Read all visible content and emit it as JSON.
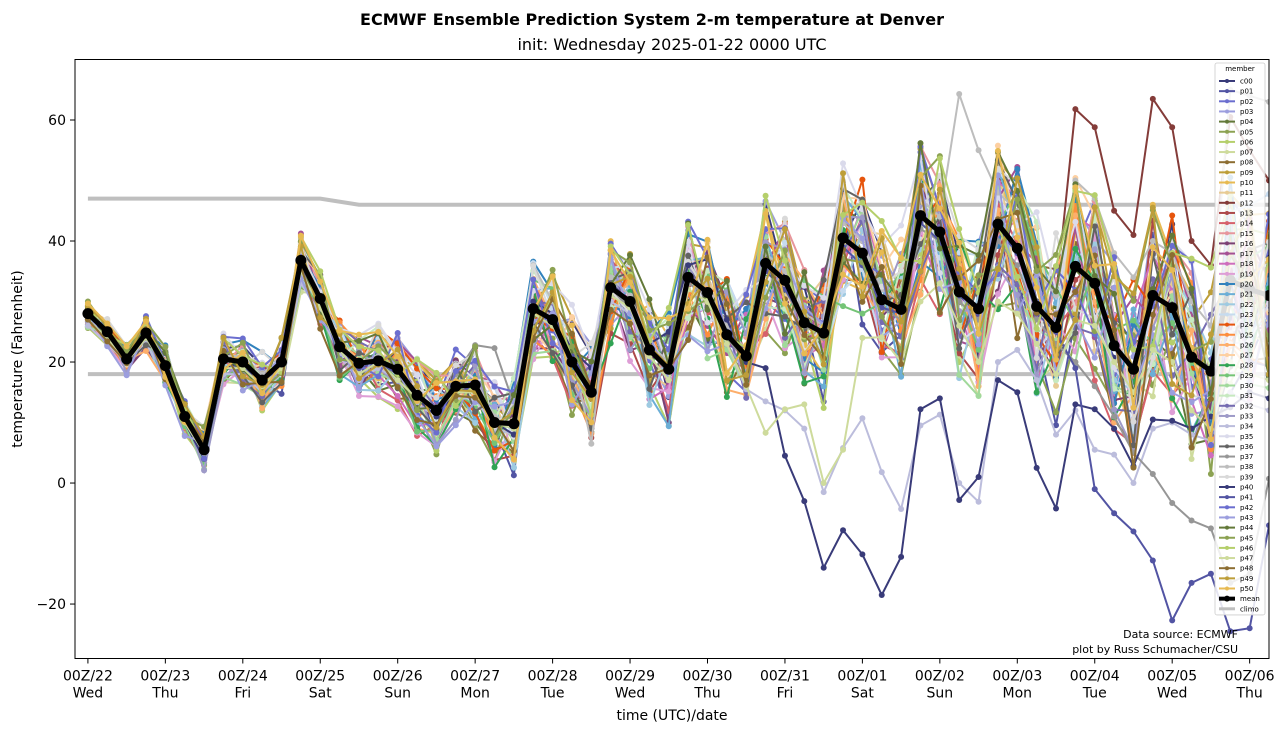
{
  "chart_data": {
    "type": "line",
    "title": "ECMWF Ensemble Prediction System 2-m temperature at Denver",
    "subtitle": "init: Wednesday 2025-01-22 0000 UTC",
    "xlabel": "time (UTC)/date",
    "ylabel": "temperature (Fahrenheit)",
    "ylim": [
      -29,
      70
    ],
    "yticks": [
      -20,
      0,
      20,
      40,
      60
    ],
    "ytick_labels": [
      "−20",
      "0",
      "20",
      "40",
      "60"
    ],
    "x_hours_range": [
      -4,
      366
    ],
    "x_step_hours": 6,
    "xticks_hours": [
      0,
      24,
      48,
      72,
      96,
      120,
      144,
      168,
      192,
      216,
      240,
      264,
      288,
      312,
      336,
      360
    ],
    "xtick_labels": [
      [
        "00Z/22",
        "Wed"
      ],
      [
        "00Z/23",
        "Thu"
      ],
      [
        "00Z/24",
        "Fri"
      ],
      [
        "00Z/25",
        "Sat"
      ],
      [
        "00Z/26",
        "Sun"
      ],
      [
        "00Z/27",
        "Mon"
      ],
      [
        "00Z/28",
        "Tue"
      ],
      [
        "00Z/29",
        "Wed"
      ],
      [
        "00Z/30",
        "Thu"
      ],
      [
        "00Z/31",
        "Fri"
      ],
      [
        "00Z/01",
        "Sat"
      ],
      [
        "00Z/02",
        "Sun"
      ],
      [
        "00Z/03",
        "Mon"
      ],
      [
        "00Z/04",
        "Tue"
      ],
      [
        "00Z/05",
        "Wed"
      ],
      [
        "00Z/06",
        "Thu"
      ]
    ],
    "grid": false,
    "legend": {
      "title": "member",
      "placement": "right",
      "entries": [
        "c00",
        "p01",
        "p02",
        "p03",
        "p04",
        "p05",
        "p06",
        "p07",
        "p08",
        "p09",
        "p10",
        "p11",
        "p12",
        "p13",
        "p14",
        "p15",
        "p16",
        "p17",
        "p18",
        "p19",
        "p20",
        "p21",
        "p22",
        "p23",
        "p24",
        "p25",
        "p26",
        "p27",
        "p28",
        "p29",
        "p30",
        "p31",
        "p32",
        "p33",
        "p34",
        "p35",
        "p36",
        "p37",
        "p38",
        "p39",
        "p40",
        "p41",
        "p42",
        "p43",
        "p44",
        "p45",
        "p46",
        "p47",
        "p48",
        "p49",
        "p50",
        "mean",
        "climo"
      ]
    },
    "member_colors": [
      "#393b79",
      "#5254a3",
      "#6b6ecf",
      "#9c9ede",
      "#637939",
      "#8ca252",
      "#b5cf6b",
      "#cedb9c",
      "#8c6d31",
      "#bd9e39",
      "#e7ba52",
      "#e7cb94",
      "#843c39",
      "#ad494a",
      "#d6616b",
      "#e7969c",
      "#7b4173",
      "#a55194",
      "#ce6dbd",
      "#de9ed6",
      "#3182bd",
      "#6baed6",
      "#9ecae1",
      "#c6dbef",
      "#e6550d",
      "#fd8d3c",
      "#fdae6b",
      "#fdd0a2",
      "#31a354",
      "#74c476",
      "#a1d99b",
      "#c7e9c0",
      "#756bb1",
      "#9e9ac8",
      "#bcbddc",
      "#dadaeb",
      "#636363",
      "#969696",
      "#bdbdbd",
      "#d9d9d9",
      "#393b79",
      "#5254a3",
      "#6b6ecf",
      "#9c9ede",
      "#637939",
      "#8ca252",
      "#b5cf6b",
      "#cedb9c",
      "#8c6d31",
      "#bd9e39",
      "#e7ba52"
    ],
    "mean_color": "#000000",
    "climo_color": "#bfbfbf",
    "mean": [
      28,
      25,
      20.5,
      24.8,
      19.4,
      11,
      5.5,
      20.5,
      20,
      17,
      20,
      36.8,
      30.5,
      22.5,
      19.8,
      20.2,
      18.8,
      14.5,
      12,
      16,
      16.2,
      10,
      9.8,
      28.8,
      27,
      20,
      15,
      32.3,
      30,
      22,
      18.8,
      34,
      31.5,
      24.5,
      21,
      36.3,
      33.5,
      26.5,
      24.8,
      40.5,
      38,
      30.3,
      28.7,
      44.2,
      41.5,
      31.6,
      28.8,
      42.8,
      38.8,
      29.2,
      25.7,
      35.8,
      33,
      22.7,
      18.8,
      31,
      29,
      20.8,
      18.5,
      33.5,
      32,
      31
    ],
    "climo_high": [
      [
        0,
        47
      ],
      [
        72,
        47
      ],
      [
        84,
        46
      ],
      [
        366,
        46
      ]
    ],
    "climo_low": [
      [
        0,
        18
      ],
      [
        366,
        18
      ]
    ],
    "highlighted_members": {
      "p40_cold": [
        28,
        24,
        21,
        24,
        19,
        10,
        4,
        19,
        20,
        16,
        19,
        36,
        30,
        22,
        18,
        20,
        17,
        14,
        11,
        15,
        15,
        10,
        8,
        30,
        28,
        22,
        19,
        33,
        30,
        23,
        25,
        36,
        37,
        27,
        20,
        19,
        4.5,
        -3,
        -14,
        -7.8,
        -11.8,
        -18.5,
        -12.2,
        12.2,
        14,
        -2.8,
        1,
        17,
        15,
        2.5,
        -4.2,
        13,
        12.2,
        9,
        2.8,
        10.5,
        10.3,
        9,
        11,
        12.5,
        15,
        14
      ],
      "p41_cold": [
        27,
        24,
        21,
        24,
        19,
        10,
        5,
        19,
        19,
        17,
        19,
        36,
        30,
        22,
        19,
        20,
        18,
        14,
        12,
        15,
        16,
        10,
        9,
        29,
        27,
        21,
        16,
        32,
        30,
        22,
        19,
        34,
        31,
        25,
        22,
        35,
        32,
        27,
        25,
        39,
        36,
        29,
        28,
        43,
        40,
        31,
        28,
        42,
        38,
        28,
        25,
        19,
        -1,
        -5,
        -8,
        -12.8,
        -22.7,
        -16.5,
        -15,
        -24.5,
        -24,
        -7,
        -8.8
      ],
      "p34_cold": [
        26,
        23,
        20,
        23,
        18,
        10,
        6,
        18,
        18,
        15,
        18,
        33,
        28,
        21,
        17,
        19,
        17,
        13,
        11,
        14,
        14,
        9,
        8,
        28,
        26,
        20,
        15,
        30,
        28,
        21,
        17,
        32,
        30,
        23,
        15.5,
        13.5,
        12,
        9,
        -1.5,
        5.8,
        10.7,
        1.8,
        -4.3,
        9.5,
        11.3,
        0,
        -3.1,
        20,
        22,
        17,
        8,
        12,
        5.5,
        4.7,
        0,
        9,
        10,
        8,
        7,
        15,
        13,
        12
      ],
      "p47_cold": [
        27,
        24,
        20,
        24,
        19,
        10,
        5,
        19,
        19,
        16,
        19,
        35,
        29,
        22,
        18,
        20,
        17,
        14,
        12,
        15,
        15,
        10,
        9,
        28,
        26,
        20,
        15,
        31,
        29,
        21,
        17,
        32,
        30,
        23,
        16,
        8.3,
        12.2,
        13,
        0,
        5.5,
        24,
        24.1,
        20,
        30,
        33,
        26,
        20,
        30,
        28,
        23,
        18,
        27,
        26,
        20,
        15,
        22,
        20,
        12,
        8.9,
        20,
        18,
        17
      ],
      "p37_cold": [
        27,
        24,
        20,
        24,
        19,
        10,
        5,
        20,
        20,
        16,
        19,
        35,
        30,
        22,
        18,
        20,
        18,
        14,
        12,
        18,
        22.8,
        22.3,
        13,
        29,
        27,
        21,
        16,
        32,
        29,
        22,
        18,
        33,
        31,
        24,
        20,
        35,
        32,
        26,
        24,
        39,
        36,
        29,
        27,
        42,
        40,
        30,
        27,
        40,
        36,
        27,
        23,
        20,
        16,
        11,
        5,
        1.5,
        -3.3,
        -6.2,
        -7.5,
        -16.5,
        -15,
        0.7,
        0.9
      ],
      "p12_warm": [
        28,
        25,
        21,
        25,
        20,
        11,
        6,
        21,
        21,
        18,
        21,
        38,
        31,
        23,
        20,
        21,
        19,
        15,
        12,
        17,
        17,
        11,
        10,
        30,
        28,
        21,
        16,
        34,
        31,
        23,
        20,
        36,
        33,
        26,
        22,
        38,
        35,
        28,
        26,
        43,
        40,
        32,
        30,
        47,
        44,
        34,
        31,
        50,
        47,
        35,
        31,
        61.8,
        58.8,
        45,
        41,
        63.5,
        58.8,
        40,
        36,
        60.5,
        55,
        50
      ],
      "p38_warm": [
        28,
        25,
        21,
        25,
        20,
        11,
        6,
        21,
        21,
        18,
        21,
        38,
        31,
        23,
        20,
        21,
        19,
        15,
        12,
        17,
        17,
        11,
        10,
        36,
        30,
        22,
        6.5,
        34,
        31,
        23,
        20,
        36,
        33,
        26,
        22,
        38,
        35,
        28,
        26,
        43,
        40,
        32,
        30,
        47,
        44,
        64.3,
        55,
        48,
        45,
        35,
        31,
        50,
        47,
        38,
        34,
        40,
        38,
        30,
        26,
        65,
        64,
        63
      ]
    },
    "annotations": [
      "Data source: ECMWF",
      "plot by Russ Schumacher/CSU"
    ]
  }
}
